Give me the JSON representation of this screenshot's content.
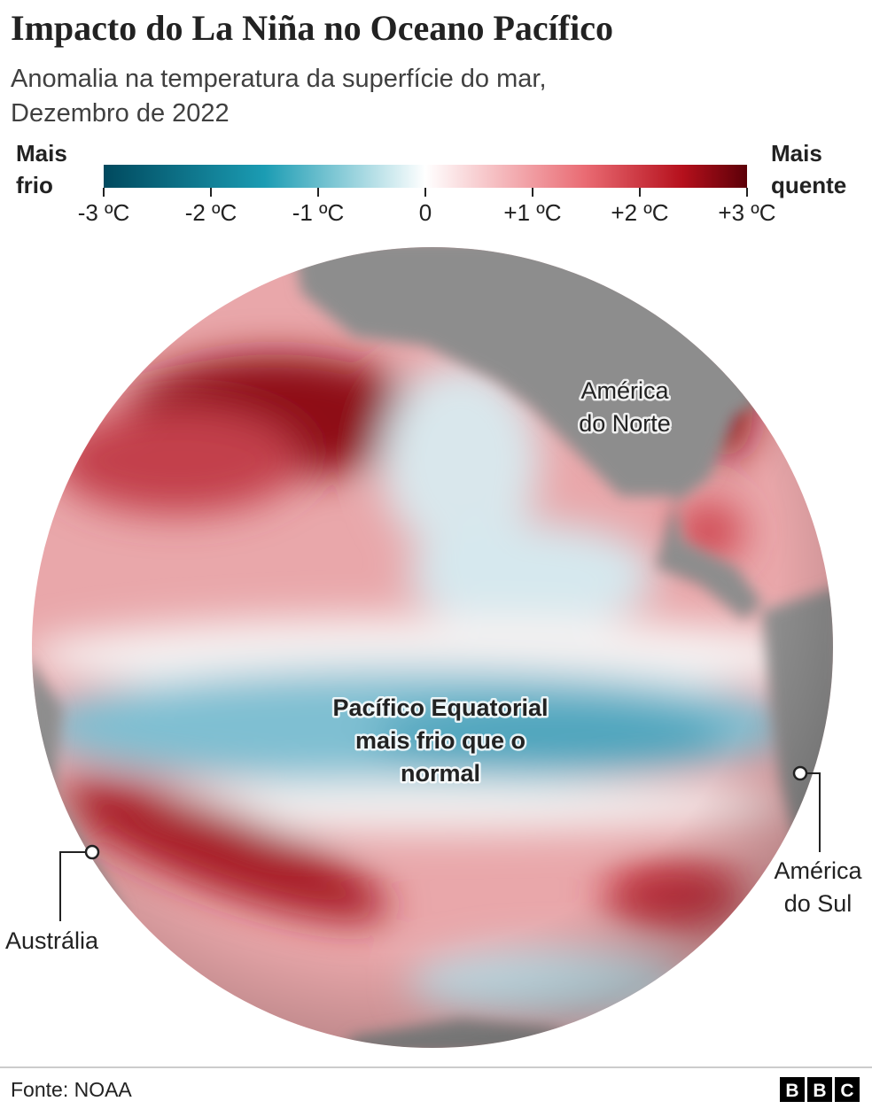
{
  "header": {
    "title": "Impacto do La Niña no Oceano Pacífico",
    "subtitle": [
      "Anomalia na temperatura da superfície do mar,",
      "Dezembro de 2022"
    ]
  },
  "legend": {
    "cold_label": [
      "Mais",
      "frio"
    ],
    "warm_label": [
      "Mais",
      "quente"
    ],
    "ticks": [
      {
        "value": -3,
        "label": "-3 ºC"
      },
      {
        "value": -2,
        "label": "-2 ºC"
      },
      {
        "value": -1,
        "label": "-1 ºC"
      },
      0,
      {
        "value": 1,
        "label": "+1 ºC"
      },
      {
        "value": 2,
        "label": "+2 ºC"
      },
      {
        "value": 3,
        "label": "+3 ºC"
      }
    ]
  },
  "map": {
    "labels": {
      "north_america": [
        "América",
        "do Norte"
      ],
      "equatorial": [
        "Pacífico Equatorial",
        "mais frio que o",
        "normal"
      ],
      "australia": "Austrália",
      "south_america": [
        "América",
        "do Sul"
      ]
    }
  },
  "footer": {
    "source": "Fonte: NOAA",
    "logo": [
      "B",
      "B",
      "C"
    ]
  }
}
